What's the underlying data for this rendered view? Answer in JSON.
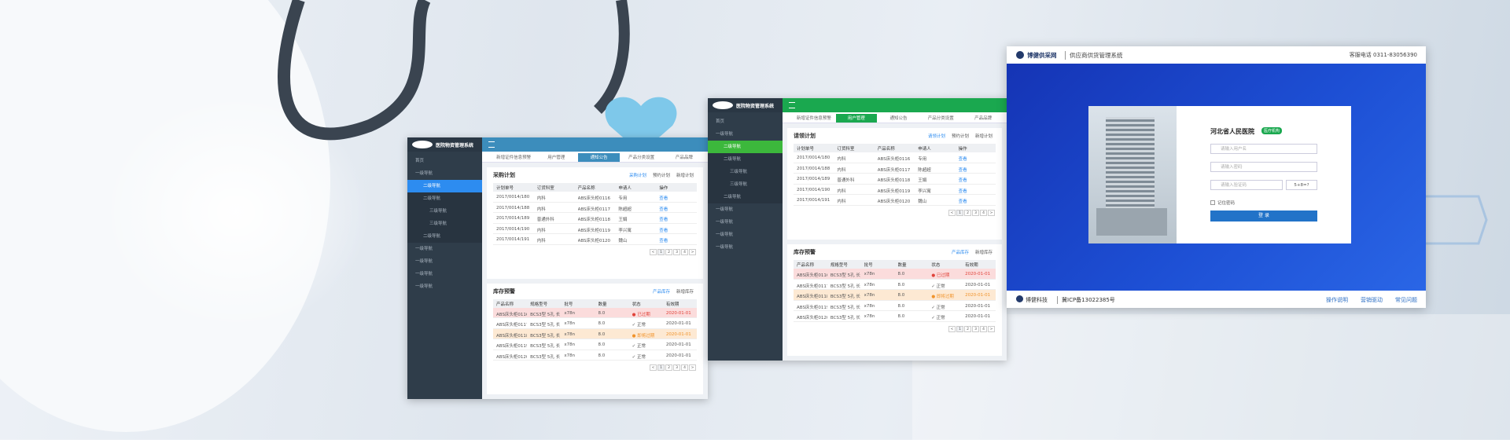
{
  "left_panel": {
    "brand": "医院物资管理系统",
    "color": "#3c8dbc",
    "active_menu": 2,
    "active_tab": 2,
    "menu": [
      "首页",
      "一级导航",
      "二级导航",
      "二级导航",
      "三级导航",
      "三级导航",
      "二级导航",
      "一级导航",
      "一级导航",
      "一级导航",
      "一级导航"
    ],
    "tabs": [
      "新增证件信息预警",
      "用户管理",
      "通知公告",
      "产品分类设置",
      "产品品牌"
    ],
    "plan": {
      "title": "采购计划",
      "actions": [
        "采购计划",
        "预约计划",
        "新增计划"
      ],
      "headers": [
        "计划单号",
        "订货科室",
        "产品名称",
        "申请人",
        "操作"
      ],
      "rows": [
        [
          "2017/0014/180",
          "内科",
          "ABS床头柜0116",
          "专用",
          "查看"
        ],
        [
          "2017/0014/188",
          "内科",
          "ABS床头柜0117",
          "陈超超",
          "查看"
        ],
        [
          "2017/0014/189",
          "普通外科",
          "ABS床头柜0118",
          "王娟",
          "查看"
        ],
        [
          "2017/0014/190",
          "内科",
          "ABS床头柜0119",
          "李兴寓",
          "查看"
        ],
        [
          "2017/0014/191",
          "内科",
          "ABS床头柜0120",
          "魏山",
          "查看"
        ]
      ],
      "pages": [
        "<",
        "1",
        "2",
        "3",
        "4",
        ">"
      ]
    },
    "stock": {
      "title": "库存预警",
      "actions": [
        "产品库存",
        "新增库存"
      ],
      "headers": [
        "产品名称",
        "规格型号",
        "批号",
        "数量",
        "状态",
        "有效期"
      ],
      "rows": [
        [
          "ABS床头柜0116",
          "BCS3型 5孔 长",
          "x78n",
          "8.0",
          "● 已过期",
          "2020-01-01"
        ],
        [
          "ABS床头柜0117",
          "BCS3型 5孔 长",
          "x78n",
          "8.0",
          "✓ 正常",
          "2020-01-01"
        ],
        [
          "ABS床头柜0118",
          "BCS3型 5孔 长",
          "x78n",
          "8.0",
          "● 即将过期",
          "2020-01-01"
        ],
        [
          "ABS床头柜0119",
          "BCS3型 5孔 长",
          "x78n",
          "8.0",
          "✓ 正常",
          "2020-01-01"
        ],
        [
          "ABS床头柜0120",
          "BCS3型 5孔 长",
          "x78n",
          "8.0",
          "✓ 正常",
          "2020-01-01"
        ]
      ],
      "row_colors": [
        "#fbdcdc",
        "#ffffff",
        "#fde9d3",
        "#ffffff",
        "#ffffff"
      ],
      "status_colors": [
        "#e0443b",
        "#555555",
        "#f0932b",
        "#555555",
        "#555555"
      ],
      "pages": [
        "<",
        "1",
        "2",
        "3",
        "4",
        ">"
      ]
    }
  },
  "middle_panel": {
    "brand": "医院物资管理系统",
    "color": "#1aa84f",
    "active_menu": 2,
    "active_tab": 1,
    "menu": [
      "首页",
      "一级导航",
      "二级导航",
      "二级导航",
      "三级导航",
      "三级导航",
      "二级导航",
      "一级导航",
      "一级导航",
      "一级导航",
      "一级导航"
    ],
    "tabs": [
      "新增证件信息预警",
      "用户管理",
      "通知公告",
      "产品分类设置",
      "产品品牌"
    ],
    "plan": {
      "title": "请领计划",
      "actions": [
        "请领计划",
        "预约计划",
        "新增计划"
      ],
      "headers": [
        "计划单号",
        "订货科室",
        "产品名称",
        "申请人",
        "操作"
      ],
      "rows": [
        [
          "2017/0014/180",
          "内科",
          "ABS床头柜0116",
          "专用",
          "查看"
        ],
        [
          "2017/0014/188",
          "内科",
          "ABS床头柜0117",
          "陈超超",
          "查看"
        ],
        [
          "2017/0014/189",
          "普通外科",
          "ABS床头柜0118",
          "王娟",
          "查看"
        ],
        [
          "2017/0014/190",
          "内科",
          "ABS床头柜0119",
          "李兴寓",
          "查看"
        ],
        [
          "2017/0014/191",
          "内科",
          "ABS床头柜0120",
          "魏山",
          "查看"
        ]
      ],
      "pages": [
        "<",
        "1",
        "2",
        "3",
        "4",
        ">"
      ]
    },
    "stock": {
      "title": "库存预警",
      "actions": [
        "产品库存",
        "新增库存"
      ],
      "headers": [
        "产品名称",
        "规格型号",
        "批号",
        "数量",
        "状态",
        "有效期"
      ],
      "rows": [
        [
          "ABS床头柜0116",
          "BCS3型 5孔 长",
          "x78n",
          "8.0",
          "● 已过期",
          "2020-01-01"
        ],
        [
          "ABS床头柜0117",
          "BCS3型 5孔 长",
          "x78n",
          "8.0",
          "✓ 正常",
          "2020-01-01"
        ],
        [
          "ABS床头柜0118",
          "BCS3型 5孔 长",
          "x78n",
          "8.0",
          "● 即将过期",
          "2020-01-01"
        ],
        [
          "ABS床头柜0119",
          "BCS3型 5孔 长",
          "x78n",
          "8.0",
          "✓ 正常",
          "2020-01-01"
        ],
        [
          "ABS床头柜0120",
          "BCS3型 5孔 长",
          "x78n",
          "8.0",
          "✓ 正常",
          "2020-01-01"
        ]
      ],
      "row_colors": [
        "#fbdcdc",
        "#ffffff",
        "#fde9d3",
        "#ffffff",
        "#ffffff"
      ],
      "status_colors": [
        "#e0443b",
        "#555555",
        "#f0932b",
        "#555555",
        "#555555"
      ],
      "pages": [
        "<",
        "1",
        "2",
        "3",
        "4",
        ">"
      ]
    }
  },
  "login": {
    "logo": "博健供采网",
    "system": "供应商供货管理系统",
    "hotline": "客服电话 0311-83056390",
    "hospital": "河北省人民医院",
    "badge": "医疗机构",
    "placeholders": [
      "请输入用户名",
      "请输入密码",
      "请输入验证码"
    ],
    "captcha": "5+8=?",
    "remember": "记住密码",
    "button": "登 录",
    "company": "博健科技",
    "icp": "冀ICP备13022385号",
    "links": [
      "操作说明",
      "营销驱动",
      "常见问题"
    ]
  }
}
